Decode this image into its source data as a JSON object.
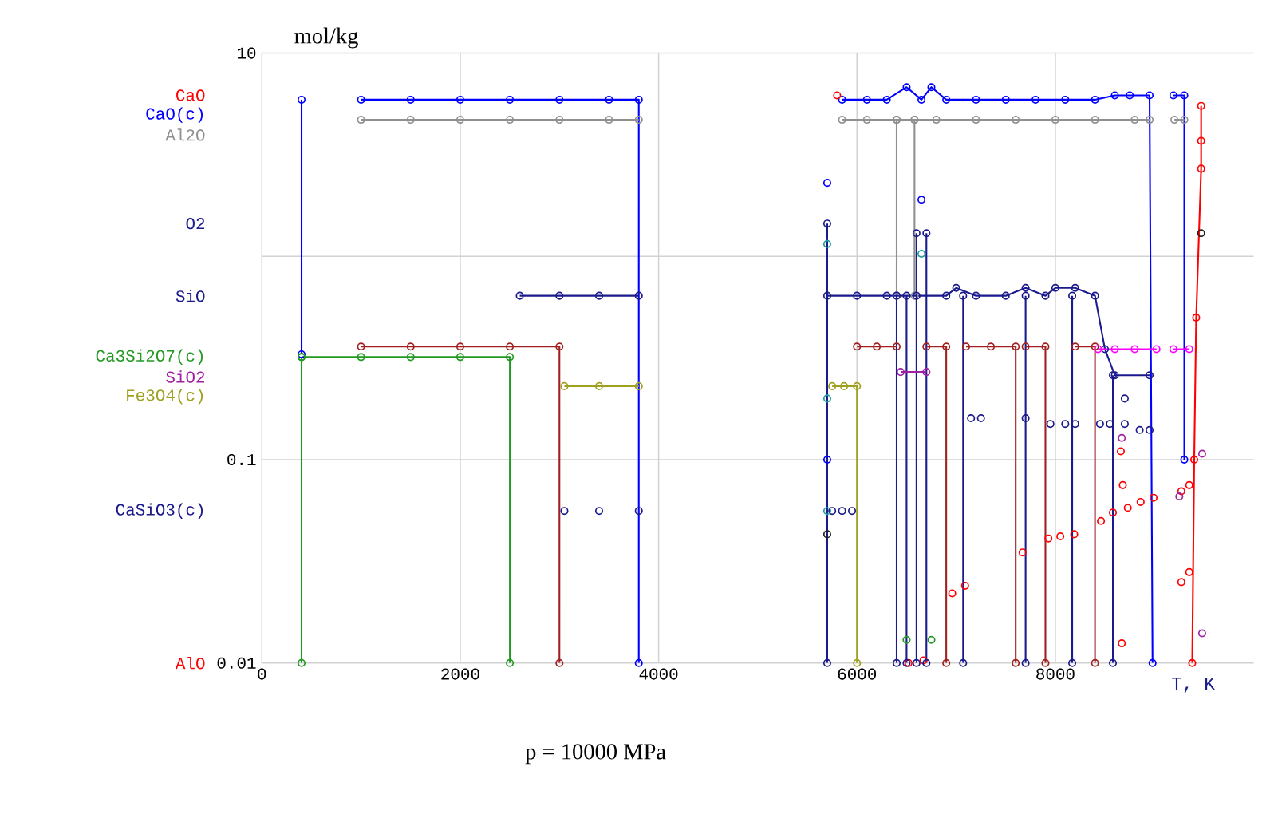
{
  "chart_data": {
    "type": "line",
    "xlabel": "T, K",
    "ylabel": "mol/kg",
    "annotations": [
      "p = 10000 MPa"
    ],
    "xlim": [
      0,
      10000
    ],
    "xticks": [
      0,
      2000,
      4000,
      6000,
      8000
    ],
    "ylim": [
      0.01,
      10
    ],
    "yticks": [
      0.01,
      0.1,
      {
        "value": 1,
        "label": null
      },
      10
    ],
    "log": "y",
    "grid": true,
    "legend": false,
    "marker": "circle",
    "series": [
      {
        "name": "CaO(c)",
        "color": "#0000ff",
        "x": [
          400,
          400,
          null,
          1000,
          1500,
          2000,
          2500,
          3000,
          3500,
          3800,
          3800,
          null,
          5850,
          6100,
          6300,
          6500,
          6650,
          6750,
          6900,
          7200,
          7500,
          7800,
          8100,
          8400,
          8600,
          8750,
          8950,
          8980,
          null,
          9190,
          9300,
          9300
        ],
        "values": [
          5.9,
          0.33,
          null,
          5.9,
          5.9,
          5.9,
          5.9,
          5.9,
          5.9,
          5.9,
          0.01,
          null,
          5.9,
          5.9,
          5.9,
          6.8,
          5.9,
          6.8,
          5.9,
          5.9,
          5.9,
          5.9,
          5.9,
          5.9,
          6.2,
          6.2,
          6.2,
          0.01,
          null,
          6.2,
          6.2,
          0.1
        ]
      },
      {
        "name": "CaO",
        "color": "#ff0000",
        "x": [
          5800,
          null,
          9470,
          9470,
          9470,
          9420,
          9400,
          9380
        ],
        "values": [
          6.2,
          null,
          5.5,
          3.7,
          2.7,
          0.5,
          0.1,
          0.01
        ]
      },
      {
        "name": "Al2O",
        "color": "#909090",
        "x": [
          1000,
          1500,
          2000,
          2500,
          3000,
          3500,
          3800,
          null,
          5850,
          6100,
          6400,
          6580,
          6800,
          7200,
          7600,
          8000,
          8400,
          8800,
          8950,
          null,
          9200,
          9300,
          null,
          6400,
          6400,
          null,
          6580,
          6580
        ],
        "values": [
          4.7,
          4.7,
          4.7,
          4.7,
          4.7,
          4.7,
          4.7,
          null,
          4.7,
          4.7,
          4.7,
          4.7,
          4.7,
          4.7,
          4.7,
          4.7,
          4.7,
          4.7,
          4.7,
          null,
          4.7,
          4.7,
          null,
          4.7,
          0.64,
          null,
          4.7,
          0.64
        ]
      },
      {
        "name": "AlO",
        "type": "scatter",
        "color": "#ff0000",
        "x": [
          6520,
          null,
          6670,
          null,
          6960,
          7090,
          null,
          7670,
          null,
          7930,
          8050,
          8190,
          null,
          8460,
          8580,
          8660,
          8680,
          8730,
          8860,
          8990,
          null,
          8670,
          null,
          9270,
          9350,
          null,
          9270,
          9350
        ],
        "values": [
          0.01,
          null,
          0.0103,
          null,
          0.022,
          0.024,
          null,
          0.035,
          null,
          0.041,
          0.042,
          0.043,
          null,
          0.05,
          0.055,
          0.11,
          0.075,
          0.058,
          0.062,
          0.065,
          null,
          0.0125,
          null,
          0.025,
          0.028,
          null,
          0.07,
          0.075
        ]
      },
      {
        "name": "O2",
        "color": "#1a1a8c",
        "x": [
          5700,
          5700,
          null,
          6400,
          6400,
          null,
          6500,
          6500,
          null,
          6600,
          6600,
          null,
          6700,
          6700,
          null,
          7070,
          7070,
          null,
          7700,
          7700,
          null,
          8170,
          8170,
          null,
          8580,
          8580
        ],
        "values": [
          1.45,
          0.01,
          null,
          0.64,
          0.01,
          null,
          0.64,
          0.01,
          null,
          1.3,
          0.01,
          null,
          1.3,
          0.01,
          null,
          0.64,
          0.01,
          null,
          0.64,
          0.01,
          null,
          0.64,
          0.01,
          null,
          0.26,
          0.01
        ]
      },
      {
        "name": "CaSiO3(c)",
        "type": "scatter",
        "color": "#1a1a8c",
        "x": [
          3050,
          3400,
          3800,
          null,
          5750,
          5850,
          5950,
          null,
          7150,
          7250,
          null,
          7700,
          null,
          7950,
          8100,
          8200,
          null,
          8450,
          8550,
          null,
          8700,
          8700,
          8850,
          8950
        ],
        "values": [
          0.056,
          0.056,
          0.056,
          null,
          0.056,
          0.056,
          0.056,
          null,
          0.16,
          0.16,
          null,
          0.16,
          null,
          0.15,
          0.15,
          0.15,
          null,
          0.15,
          0.15,
          null,
          0.2,
          0.15,
          0.14,
          0.14
        ]
      },
      {
        "name": "SiO",
        "color": "#1a1a8c",
        "x": [
          2600,
          3000,
          3400,
          3800,
          null,
          5700,
          6000,
          6300,
          6600,
          6900,
          7000,
          7200,
          7500,
          7700,
          7900,
          8000,
          8200,
          8400,
          8500,
          8600,
          8950
        ],
        "values": [
          0.64,
          0.64,
          0.64,
          0.64,
          null,
          0.64,
          0.64,
          0.64,
          0.64,
          0.64,
          0.7,
          0.64,
          0.64,
          0.7,
          0.64,
          0.7,
          0.7,
          0.64,
          0.35,
          0.26,
          0.26
        ]
      },
      {
        "name": "Ca3Si2O7(c)",
        "color": "#229922",
        "x": [
          400,
          400,
          null,
          400,
          1000,
          1500,
          2000,
          2500,
          2500,
          null,
          6500,
          null,
          6750
        ],
        "values": [
          0.32,
          0.01,
          null,
          0.32,
          0.32,
          0.32,
          0.32,
          0.32,
          0.01,
          null,
          0.013,
          null,
          0.013
        ]
      },
      {
        "name": "Fe3O4(c)",
        "color": "#a0a020",
        "x": [
          3050,
          3400,
          3800,
          null,
          5750,
          5870,
          6000,
          6000
        ],
        "values": [
          0.23,
          0.23,
          0.23,
          null,
          0.23,
          0.23,
          0.23,
          0.01
        ]
      },
      {
        "name": "SiO2",
        "color": "#a020a0",
        "x": [
          6440,
          6700,
          null,
          8670,
          null,
          9250,
          null,
          9480,
          null,
          9480
        ],
        "values": [
          0.27,
          0.27,
          null,
          0.128,
          null,
          0.066,
          null,
          0.107,
          null,
          0.014
        ]
      },
      {
        "color": "#a02020",
        "x": [
          1000,
          1500,
          2000,
          2500,
          3000,
          3000,
          null,
          6000,
          6200,
          6400,
          null,
          6700,
          6900,
          6900,
          null,
          7100,
          7350,
          7600,
          7600,
          null,
          7700,
          7900,
          7900,
          null,
          8200,
          8400,
          8400
        ],
        "values": [
          0.36,
          0.36,
          0.36,
          0.36,
          0.36,
          0.01,
          null,
          0.36,
          0.36,
          0.36,
          null,
          0.36,
          0.36,
          0.01,
          null,
          0.36,
          0.36,
          0.36,
          0.01,
          null,
          0.36,
          0.36,
          0.01,
          null,
          0.36,
          0.36,
          0.01
        ]
      },
      {
        "color": "#ff00ff",
        "x": [
          8430,
          8600,
          8800,
          9020,
          null,
          9190,
          9350
        ],
        "values": [
          0.35,
          0.35,
          0.35,
          0.35,
          null,
          0.35,
          0.35
        ]
      },
      {
        "type": "scatter",
        "color": "#20a0a0",
        "x": [
          5700,
          5700,
          5700,
          6650
        ],
        "values": [
          1.15,
          0.2,
          0.056,
          1.03
        ]
      },
      {
        "type": "scatter",
        "color": "#0000ff",
        "x": [
          5700,
          6650,
          5700
        ],
        "values": [
          2.3,
          1.9,
          0.1
        ]
      },
      {
        "type": "scatter",
        "color": "#202020",
        "x": [
          5700,
          9470
        ],
        "values": [
          0.043,
          1.3
        ]
      }
    ]
  }
}
